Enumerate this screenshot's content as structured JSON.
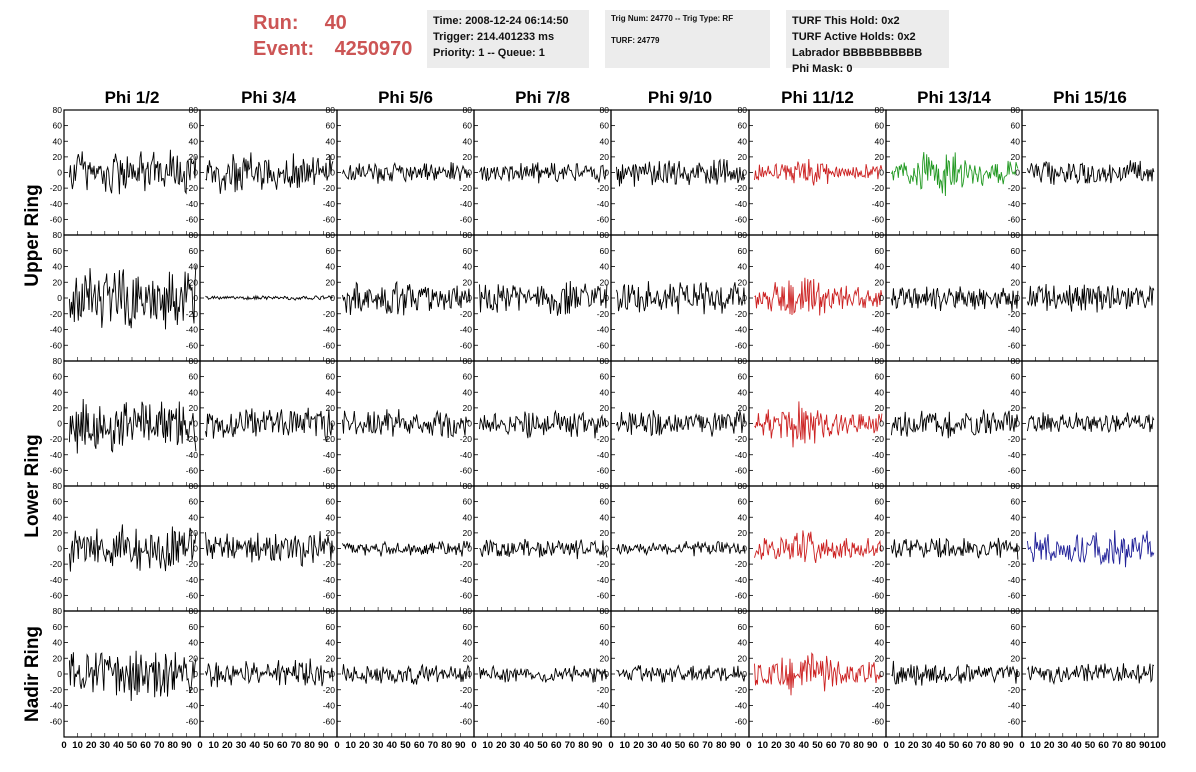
{
  "header": {
    "run_label": "Run:",
    "run_value": "40",
    "event_label": "Event:",
    "event_value": "4250970",
    "accent_color": "#cc5555",
    "time_box": {
      "time": "Time: 2008-12-24 06:14:50",
      "trigger": "Trigger: 214.401233 ms",
      "priority": "Priority: 1 -- Queue: 1"
    },
    "trig_box": {
      "trig": "Trig Num: 24770 -- Trig Type: RF",
      "turf": "TURF: 24779"
    },
    "turf_box": {
      "hold": "TURF This Hold: 0x2",
      "active": "TURF Active Holds: 0x2",
      "labrador": "Labrador BBBBBBBBBB",
      "phimask": "Phi Mask: 0"
    }
  },
  "chart_data": {
    "type": "line",
    "columns": [
      "Phi 1/2",
      "Phi 3/4",
      "Phi 5/6",
      "Phi 7/8",
      "Phi 9/10",
      "Phi 11/12",
      "Phi 13/14",
      "Phi 15/16"
    ],
    "row_labels": [
      "Upper Ring",
      "Lower Ring",
      "Nadir Ring"
    ],
    "ylim": [
      -80,
      80
    ],
    "yticks": [
      -60,
      -40,
      -20,
      0,
      20,
      40,
      60,
      80
    ],
    "xlim": [
      0,
      100
    ],
    "xtick_labels": [
      "0",
      "10",
      "20",
      "30",
      "40",
      "50",
      "60",
      "70",
      "80",
      "90",
      "100"
    ],
    "colors": {
      "default": "#000000",
      "phi_11_12": "#cc2222",
      "phi_13_14_upper": "#229922",
      "phi_15_16_lower": "#222299"
    },
    "waveform_amplitude": [
      [
        35,
        30,
        15,
        15,
        20,
        20,
        30,
        18
      ],
      [
        45,
        3,
        25,
        25,
        25,
        30,
        18,
        22
      ],
      [
        40,
        25,
        20,
        20,
        20,
        30,
        20,
        15
      ],
      [
        35,
        25,
        12,
        15,
        10,
        25,
        15,
        25
      ],
      [
        35,
        20,
        15,
        12,
        12,
        30,
        18,
        15
      ]
    ]
  }
}
